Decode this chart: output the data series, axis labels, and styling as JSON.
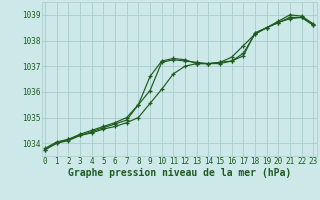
{
  "title": "Graphe pression niveau de la mer (hPa)",
  "background_color": "#cce8e8",
  "grid_color": "#aacccc",
  "line_color": "#1e5c1e",
  "x_ticks": [
    0,
    1,
    2,
    3,
    4,
    5,
    6,
    7,
    8,
    9,
    10,
    11,
    12,
    13,
    14,
    15,
    16,
    17,
    18,
    19,
    20,
    21,
    22,
    23
  ],
  "ylim": [
    1033.5,
    1039.5
  ],
  "yticks": [
    1034,
    1035,
    1036,
    1037,
    1038,
    1039
  ],
  "series1": [
    1033.75,
    1034.0,
    1034.1,
    1034.3,
    1034.4,
    1034.55,
    1034.65,
    1034.8,
    1035.0,
    1035.55,
    1036.1,
    1036.7,
    1037.0,
    1037.1,
    1037.1,
    1037.15,
    1037.35,
    1037.8,
    1038.25,
    1038.5,
    1038.7,
    1038.9,
    1038.9,
    1038.6
  ],
  "series2": [
    1033.75,
    1034.0,
    1034.15,
    1034.35,
    1034.5,
    1034.65,
    1034.8,
    1035.0,
    1035.5,
    1036.05,
    1037.15,
    1037.25,
    1037.2,
    1037.15,
    1037.1,
    1037.15,
    1037.2,
    1037.5,
    1038.25,
    1038.5,
    1038.7,
    1038.85,
    1038.9,
    1038.6
  ],
  "series3": [
    1033.8,
    1034.05,
    1034.15,
    1034.3,
    1034.45,
    1034.6,
    1034.75,
    1034.9,
    1035.5,
    1036.6,
    1037.2,
    1037.3,
    1037.25,
    1037.1,
    1037.1,
    1037.1,
    1037.2,
    1037.4,
    1038.3,
    1038.5,
    1038.75,
    1039.0,
    1038.95,
    1038.65
  ],
  "tick_fontsize": 5.5,
  "title_fontsize": 7.0
}
